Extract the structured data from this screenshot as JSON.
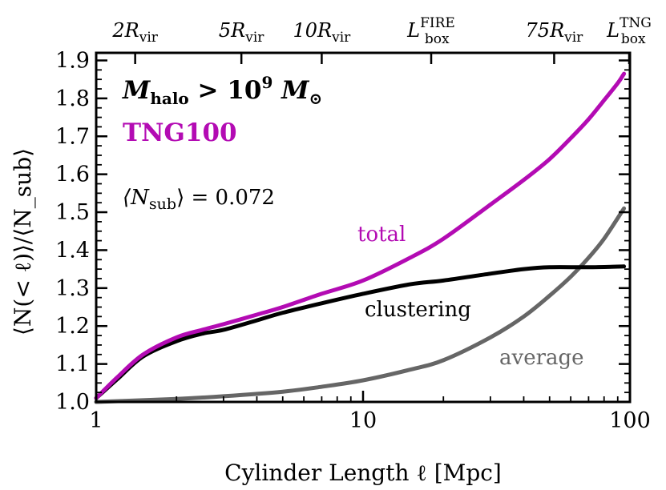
{
  "chart_data": {
    "type": "line",
    "x_scale": "log",
    "xlim": [
      1,
      100
    ],
    "ylim": [
      1.0,
      1.92
    ],
    "xlabel": "Cylinder Length ℓ [Mpc]",
    "ylabel": "⟨N(< ℓ)⟩/⟨N_sub⟩",
    "x_ticks": [
      {
        "value": 1,
        "label": "1"
      },
      {
        "value": 10,
        "label": "10"
      },
      {
        "value": 100,
        "label": "100"
      }
    ],
    "y_ticks": [
      {
        "value": 1.0,
        "label": "1.0"
      },
      {
        "value": 1.1,
        "label": "1.1"
      },
      {
        "value": 1.2,
        "label": "1.2"
      },
      {
        "value": 1.3,
        "label": "1.3"
      },
      {
        "value": 1.4,
        "label": "1.4"
      },
      {
        "value": 1.5,
        "label": "1.5"
      },
      {
        "value": 1.6,
        "label": "1.6"
      },
      {
        "value": 1.7,
        "label": "1.7"
      },
      {
        "value": 1.8,
        "label": "1.8"
      },
      {
        "value": 1.9,
        "label": "1.9"
      }
    ],
    "top_axis_ticks": [
      {
        "value": 1.4,
        "main": "2R",
        "sub": "vir",
        "sup": ""
      },
      {
        "value": 3.5,
        "main": "5R",
        "sub": "vir",
        "sup": ""
      },
      {
        "value": 7.0,
        "main": "10R",
        "sub": "vir",
        "sup": ""
      },
      {
        "value": 18.0,
        "main": "L",
        "sub": "box",
        "sup": "FIRE"
      },
      {
        "value": 52.0,
        "main": "75R",
        "sub": "vir",
        "sup": ""
      },
      {
        "value": 100.0,
        "main": "L",
        "sub": "box",
        "sup": "TNG"
      }
    ],
    "annotations": {
      "halo_main": "M",
      "halo_sub": "halo",
      "halo_rel": " > 10",
      "halo_exp": "9",
      "halo_unit": " M",
      "halo_unit_sym": "⊙",
      "sim_name": "TNG100",
      "nsub_open": "⟨N",
      "nsub_sub": "sub",
      "nsub_close": "⟩ = 0.072"
    },
    "series": [
      {
        "name": "total",
        "color": "#b30bb3",
        "x": [
          1.0,
          1.2,
          1.5,
          2.0,
          2.5,
          3.0,
          4.0,
          5.0,
          7.0,
          10.0,
          15.0,
          20.0,
          30.0,
          40.0,
          50.0,
          60.0,
          70.0,
          80.0,
          90.0,
          95.0
        ],
        "y": [
          1.01,
          1.065,
          1.125,
          1.17,
          1.19,
          1.205,
          1.23,
          1.25,
          1.285,
          1.32,
          1.38,
          1.43,
          1.52,
          1.585,
          1.64,
          1.695,
          1.745,
          1.795,
          1.84,
          1.865
        ]
      },
      {
        "name": "clustering",
        "color": "#000000",
        "x": [
          1.0,
          1.2,
          1.5,
          2.0,
          2.5,
          3.0,
          4.0,
          5.0,
          7.0,
          10.0,
          15.0,
          20.0,
          30.0,
          40.0,
          50.0,
          70.0,
          95.0
        ],
        "y": [
          1.01,
          1.06,
          1.12,
          1.16,
          1.18,
          1.19,
          1.215,
          1.235,
          1.26,
          1.285,
          1.31,
          1.32,
          1.338,
          1.35,
          1.355,
          1.355,
          1.357
        ]
      },
      {
        "name": "average",
        "color": "#666666",
        "x": [
          1.0,
          2.0,
          3.0,
          5.0,
          7.0,
          10.0,
          15.0,
          20.0,
          30.0,
          40.0,
          50.0,
          60.0,
          70.0,
          80.0,
          95.0
        ],
        "y": [
          1.0,
          1.008,
          1.015,
          1.027,
          1.04,
          1.057,
          1.085,
          1.11,
          1.17,
          1.225,
          1.28,
          1.33,
          1.38,
          1.43,
          1.51
        ]
      }
    ],
    "curve_labels": [
      {
        "series": "total",
        "text": "total",
        "color": "#b30bb3"
      },
      {
        "series": "clustering",
        "text": "clustering",
        "color": "#000000"
      },
      {
        "series": "average",
        "text": "average",
        "color": "#666666"
      }
    ]
  }
}
